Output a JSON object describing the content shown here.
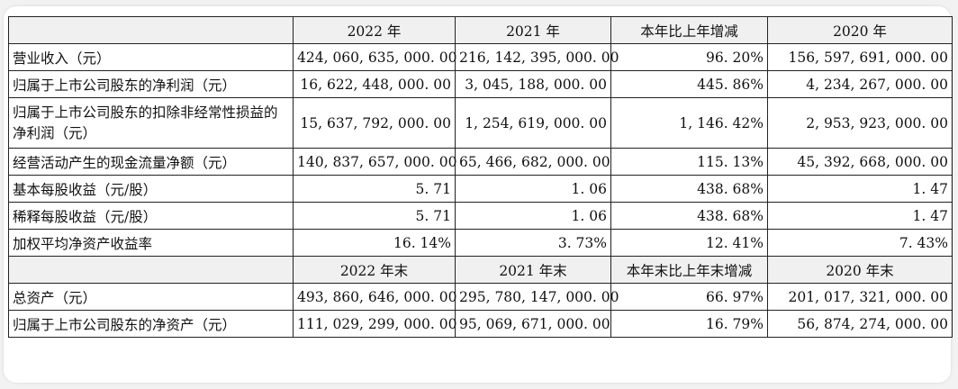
{
  "header1": [
    "",
    "2022 年",
    "2021 年",
    "本年比上年增减",
    "2020 年"
  ],
  "header2": [
    "",
    "2022 年末",
    "2021 年末",
    "本年末比上年末增减",
    "2020 年末"
  ],
  "rows1": [
    {
      "label": "营业收入（元）",
      "values": [
        "424, 060, 635, 000. 00",
        "216, 142, 395, 000. 00",
        "96. 20%",
        "156, 597, 691, 000. 00"
      ]
    },
    {
      "label": "归属于上市公司股东的净利润（元）",
      "values": [
        "16, 622, 448, 000. 00",
        "3, 045, 188, 000. 00",
        "445. 86%",
        "4, 234, 267, 000. 00"
      ]
    },
    {
      "label": "归属于上市公司股东的扣除非经常性损益的净利润（元）",
      "values": [
        "15, 637, 792, 000. 00",
        "1, 254, 619, 000. 00",
        "1, 146. 42%",
        "2, 953, 923, 000. 00"
      ]
    },
    {
      "label": "经营活动产生的现金流量净额（元）",
      "values": [
        "140, 837, 657, 000. 00",
        "65, 466, 682, 000. 00",
        "115. 13%",
        "45, 392, 668, 000. 00"
      ]
    },
    {
      "label": "基本每股收益（元/股）",
      "values": [
        "5. 71",
        "1. 06",
        "438. 68%",
        "1. 47"
      ]
    },
    {
      "label": "稀释每股收益（元/股）",
      "values": [
        "5. 71",
        "1. 06",
        "438. 68%",
        "1. 47"
      ]
    },
    {
      "label": "加权平均净资产收益率",
      "values": [
        "16. 14%",
        "3. 73%",
        "12. 41%",
        "7. 43%"
      ]
    }
  ],
  "rows2": [
    {
      "label": "总资产（元）",
      "values": [
        "493, 860, 646, 000. 00",
        "295, 780, 147, 000. 00",
        "66. 97%",
        "201, 017, 321, 000. 00"
      ]
    },
    {
      "label": "归属于上市公司股东的净资产（元）",
      "values": [
        "111, 029, 299, 000. 00",
        "95, 069, 671, 000. 00",
        "16. 79%",
        "56, 874, 274, 000. 00"
      ]
    }
  ]
}
